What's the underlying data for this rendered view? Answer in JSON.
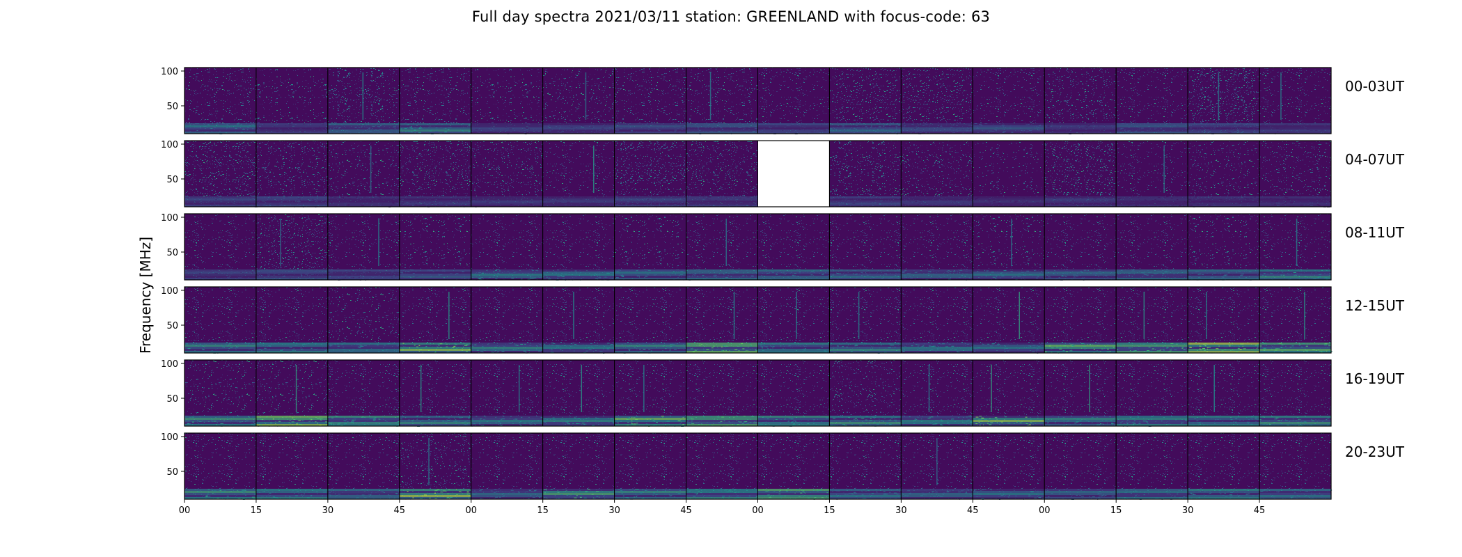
{
  "chart_data": {
    "type": "heatmap",
    "title": "Full day spectra 2021/03/11 station: GREENLAND with focus-code: 63",
    "ylabel": "Frequency [MHz]",
    "ylim": [
      10,
      105
    ],
    "yticks": [
      50,
      100
    ],
    "xticks": [
      "00",
      "15",
      "30",
      "45",
      "00",
      "15",
      "30",
      "45",
      "00",
      "15",
      "30",
      "45",
      "00",
      "15",
      "30",
      "45"
    ],
    "panels_per_row": 16,
    "panel_minutes": 15,
    "colormap": [
      "#440154",
      "#3b528b",
      "#21918c",
      "#5ec962",
      "#fde725"
    ],
    "rows": [
      {
        "label": "00-03UT",
        "background": [
          0.12,
          0.09,
          0.16,
          0.12,
          0.09,
          0.11,
          0.12,
          0.12,
          0.1,
          0.18,
          0.18,
          0.1,
          0.15,
          0.1,
          0.24,
          0.1
        ],
        "low_band": [
          0.45,
          0.15,
          0.35,
          0.55,
          0.2,
          0.2,
          0.25,
          0.3,
          0.2,
          0.4,
          0.25,
          0.3,
          0.15,
          0.3,
          0.2,
          0.15
        ],
        "vertical_lines": [
          [
            2,
            0.6
          ],
          [
            5,
            0.4
          ],
          [
            7,
            0.4
          ],
          [
            14,
            0.4
          ],
          [
            15,
            0.5
          ]
        ],
        "missing": []
      },
      {
        "label": "04-07UT",
        "background": [
          0.19,
          0.15,
          0.11,
          0.17,
          0.14,
          0.1,
          0.22,
          0.17,
          0.1,
          0.16,
          0.13,
          0.07,
          0.2,
          0.1,
          0.11,
          0.12
        ],
        "low_band": [
          0.2,
          0.2,
          0.1,
          0.15,
          0.15,
          0.15,
          0.2,
          0.15,
          0.0,
          0.2,
          0.15,
          0.1,
          0.15,
          0.1,
          0.1,
          0.1
        ],
        "vertical_lines": [
          [
            5,
            0.7
          ],
          [
            13,
            0.4
          ],
          [
            2,
            0.3
          ]
        ],
        "missing": [
          8
        ]
      },
      {
        "label": "08-11UT",
        "background": [
          0.1,
          0.18,
          0.1,
          0.09,
          0.1,
          0.1,
          0.09,
          0.1,
          0.1,
          0.1,
          0.1,
          0.09,
          0.1,
          0.1,
          0.09,
          0.1
        ],
        "low_band": [
          0.2,
          0.25,
          0.2,
          0.3,
          0.5,
          0.5,
          0.45,
          0.4,
          0.4,
          0.4,
          0.4,
          0.45,
          0.4,
          0.4,
          0.4,
          0.55
        ],
        "vertical_lines": [
          [
            2,
            0.5
          ],
          [
            7,
            0.4
          ],
          [
            11,
            0.4
          ],
          [
            15,
            0.5
          ],
          [
            1,
            0.3
          ]
        ],
        "missing": []
      },
      {
        "label": "12-15UT",
        "background": [
          0.1,
          0.1,
          0.11,
          0.1,
          0.1,
          0.1,
          0.1,
          0.1,
          0.1,
          0.1,
          0.1,
          0.1,
          0.1,
          0.1,
          0.1,
          0.1
        ],
        "low_band": [
          0.55,
          0.5,
          0.45,
          0.85,
          0.55,
          0.5,
          0.55,
          0.8,
          0.5,
          0.55,
          0.5,
          0.45,
          0.8,
          0.7,
          0.9,
          0.75
        ],
        "vertical_lines": [
          [
            3,
            0.7
          ],
          [
            5,
            0.6
          ],
          [
            7,
            0.6
          ],
          [
            8,
            0.5
          ],
          [
            9,
            0.5
          ],
          [
            11,
            0.8
          ],
          [
            13,
            0.7
          ],
          [
            14,
            0.6
          ],
          [
            15,
            0.7
          ]
        ],
        "missing": []
      },
      {
        "label": "16-19UT",
        "background": [
          0.11,
          0.11,
          0.1,
          0.1,
          0.1,
          0.1,
          0.1,
          0.1,
          0.1,
          0.13,
          0.1,
          0.1,
          0.1,
          0.1,
          0.1,
          0.1
        ],
        "low_band": [
          0.6,
          0.85,
          0.6,
          0.55,
          0.5,
          0.55,
          0.8,
          0.7,
          0.55,
          0.6,
          0.55,
          0.85,
          0.55,
          0.55,
          0.5,
          0.6
        ],
        "vertical_lines": [
          [
            1,
            0.8
          ],
          [
            3,
            0.7
          ],
          [
            4,
            0.5
          ],
          [
            5,
            0.7
          ],
          [
            6,
            0.5
          ],
          [
            11,
            0.8
          ],
          [
            12,
            0.8
          ],
          [
            14,
            0.6
          ],
          [
            10,
            0.5
          ]
        ],
        "missing": []
      },
      {
        "label": "20-23UT",
        "background": [
          0.1,
          0.1,
          0.1,
          0.14,
          0.1,
          0.1,
          0.1,
          0.1,
          0.1,
          0.1,
          0.1,
          0.1,
          0.1,
          0.1,
          0.1,
          0.1
        ],
        "low_band": [
          0.6,
          0.5,
          0.4,
          0.9,
          0.4,
          0.7,
          0.55,
          0.55,
          0.7,
          0.45,
          0.4,
          0.45,
          0.4,
          0.45,
          0.5,
          0.45
        ],
        "vertical_lines": [
          [
            10,
            0.3
          ],
          [
            3,
            0.4
          ]
        ],
        "missing": []
      }
    ]
  }
}
